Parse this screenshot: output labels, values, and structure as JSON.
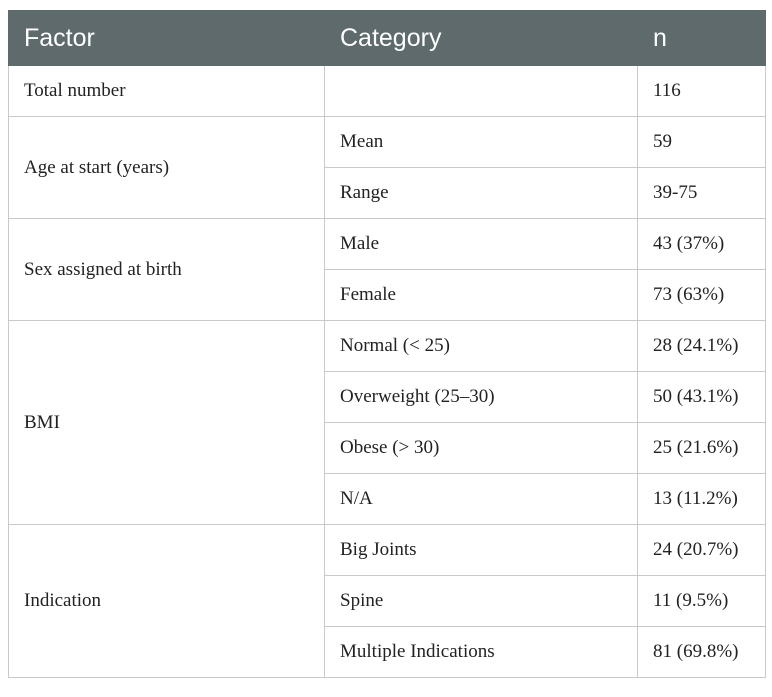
{
  "table": {
    "headers": [
      "Factor",
      "Category",
      "n"
    ],
    "rows": {
      "total": {
        "factor": "Total number",
        "category": "",
        "n": "116"
      },
      "age": {
        "factor": "Age at start (years)",
        "items": [
          {
            "category": "Mean",
            "n": "59"
          },
          {
            "category": "Range",
            "n": "39-75"
          }
        ]
      },
      "sex": {
        "factor": "Sex assigned at birth",
        "items": [
          {
            "category": "Male",
            "n": "43 (37%)"
          },
          {
            "category": "Female",
            "n": "73 (63%)"
          }
        ]
      },
      "bmi": {
        "factor": "BMI",
        "items": [
          {
            "category": "Normal (< 25)",
            "n": "28 (24.1%)"
          },
          {
            "category": "Overweight (25–30)",
            "n": "50 (43.1%)"
          },
          {
            "category": "Obese (> 30)",
            "n": "25 (21.6%)"
          },
          {
            "category": "N/A",
            "n": "13 (11.2%)"
          }
        ]
      },
      "indication": {
        "factor": "Indication",
        "items": [
          {
            "category": "Big Joints",
            "n": "24 (20.7%)"
          },
          {
            "category": "Spine",
            "n": "11 (9.5%)"
          },
          {
            "category": "Multiple Indications",
            "n": "81 (69.8%)"
          }
        ]
      }
    }
  }
}
